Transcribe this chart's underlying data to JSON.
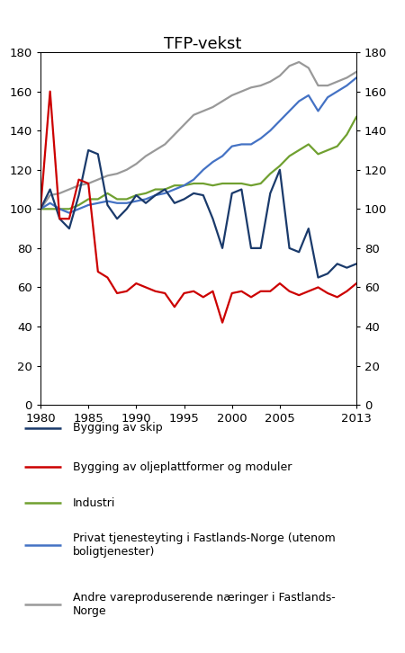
{
  "title": "TFP-vekst",
  "years": [
    1980,
    1981,
    1982,
    1983,
    1984,
    1985,
    1986,
    1987,
    1988,
    1989,
    1990,
    1991,
    1992,
    1993,
    1994,
    1995,
    1996,
    1997,
    1998,
    1999,
    2000,
    2001,
    2002,
    2003,
    2004,
    2005,
    2006,
    2007,
    2008,
    2009,
    2010,
    2011,
    2012,
    2013
  ],
  "bygging_skip": [
    100,
    110,
    95,
    90,
    107,
    130,
    128,
    102,
    95,
    100,
    107,
    103,
    107,
    110,
    103,
    105,
    108,
    107,
    95,
    80,
    108,
    110,
    80,
    80,
    108,
    120,
    80,
    78,
    90,
    65,
    67,
    72,
    70,
    72
  ],
  "bygging_olje": [
    100,
    160,
    95,
    95,
    115,
    113,
    68,
    65,
    57,
    58,
    62,
    60,
    58,
    57,
    50,
    57,
    58,
    55,
    58,
    42,
    57,
    58,
    55,
    58,
    58,
    62,
    58,
    56,
    58,
    60,
    57,
    55,
    58,
    62
  ],
  "industri": [
    100,
    100,
    100,
    100,
    102,
    105,
    105,
    108,
    105,
    105,
    107,
    108,
    110,
    110,
    112,
    112,
    113,
    113,
    112,
    113,
    113,
    113,
    112,
    113,
    118,
    122,
    127,
    130,
    133,
    128,
    130,
    132,
    138,
    147
  ],
  "privat_tjeneste": [
    100,
    103,
    100,
    98,
    100,
    102,
    103,
    104,
    103,
    103,
    104,
    105,
    107,
    108,
    110,
    112,
    115,
    120,
    124,
    127,
    132,
    133,
    133,
    136,
    140,
    145,
    150,
    155,
    158,
    150,
    157,
    160,
    163,
    167
  ],
  "andre_vare": [
    100,
    107,
    108,
    110,
    112,
    113,
    115,
    117,
    118,
    120,
    123,
    127,
    130,
    133,
    138,
    143,
    148,
    150,
    152,
    155,
    158,
    160,
    162,
    163,
    165,
    168,
    173,
    175,
    172,
    163,
    163,
    165,
    167,
    170
  ],
  "color_skip": "#1a3a6b",
  "color_olje": "#cc0000",
  "color_industri": "#70a030",
  "color_privat": "#4472c4",
  "color_andre": "#999999",
  "ylim": [
    0,
    180
  ],
  "yticks": [
    0,
    20,
    40,
    60,
    80,
    100,
    120,
    140,
    160,
    180
  ],
  "xticks": [
    1980,
    1985,
    1990,
    1995,
    2000,
    2005,
    2013
  ],
  "legend_entries": [
    "Bygging av skip",
    "Bygging av oljeplattformer og moduler",
    "Industri",
    "Privat tjenesteyting i Fastlands-Norge (utenom\nboligtjenester)",
    "Andre vareproduserende næringer i Fastlands-\nNorge"
  ]
}
